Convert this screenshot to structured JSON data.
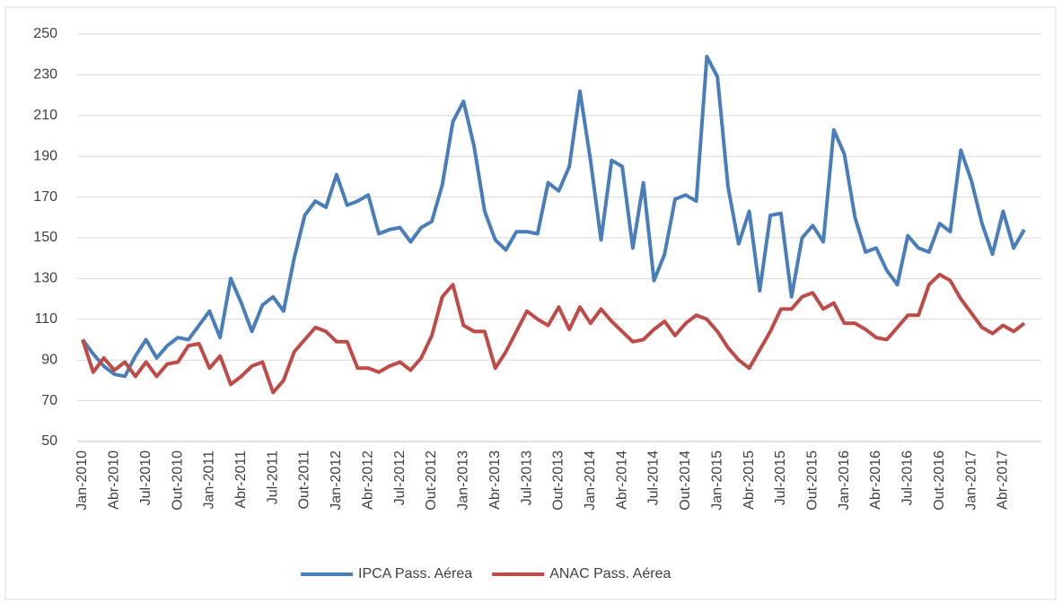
{
  "chart_data": {
    "type": "line",
    "categories": [
      "Jan-2010",
      null,
      null,
      "Abr-2010",
      null,
      null,
      "Jul-2010",
      null,
      null,
      "Out-2010",
      null,
      null,
      "Jan-2011",
      null,
      null,
      "Abr-2011",
      null,
      null,
      "Jul-2011",
      null,
      null,
      "Out-2011",
      null,
      null,
      "Jan-2012",
      null,
      null,
      "Abr-2012",
      null,
      null,
      "Jul-2012",
      null,
      null,
      "Out-2012",
      null,
      null,
      "Jan-2013",
      null,
      null,
      "Abr-2013",
      null,
      null,
      "Jul-2013",
      null,
      null,
      "Out-2013",
      null,
      null,
      "Jan-2014",
      null,
      null,
      "Abr-2014",
      null,
      null,
      "Jul-2014",
      null,
      null,
      "Out-2014",
      null,
      null,
      "Jan-2015",
      null,
      null,
      "Abr-2015",
      null,
      null,
      "Jul-2015",
      null,
      null,
      "Out-2015",
      null,
      null,
      "Jan-2016",
      null,
      null,
      "Abr-2016",
      null,
      null,
      "Jul-2016",
      null,
      null,
      "Out-2016",
      null,
      null,
      "Jan-2017",
      null,
      null,
      "Abr-2017",
      null,
      null
    ],
    "series": [
      {
        "name": "IPCA Pass. Aérea",
        "color": "#4a7ebb",
        "values": [
          100,
          93,
          87,
          83,
          82,
          92,
          100,
          91,
          97,
          101,
          100,
          107,
          114,
          101,
          130,
          118,
          104,
          117,
          121,
          114,
          140,
          161,
          168,
          165,
          181,
          166,
          168,
          171,
          152,
          154,
          155,
          148,
          155,
          158,
          176,
          207,
          217,
          195,
          163,
          149,
          144,
          153,
          153,
          152,
          177,
          173,
          185,
          222,
          188,
          149,
          188,
          185,
          145,
          177,
          129,
          142,
          169,
          171,
          168,
          239,
          229,
          175,
          147,
          163,
          124,
          161,
          162,
          121,
          150,
          156,
          148,
          203,
          191,
          160,
          143,
          145,
          134,
          127,
          151,
          145,
          143,
          157,
          153,
          193,
          178,
          157,
          142,
          163,
          145,
          154
        ]
      },
      {
        "name": "ANAC Pass. Aérea",
        "color": "#be4b48",
        "values": [
          100,
          84,
          91,
          85,
          89,
          82,
          89,
          82,
          88,
          89,
          97,
          98,
          86,
          92,
          78,
          82,
          87,
          89,
          74,
          80,
          94,
          100,
          106,
          104,
          99,
          99,
          86,
          86,
          84,
          87,
          89,
          85,
          91,
          102,
          121,
          127,
          107,
          104,
          104,
          86,
          94,
          104,
          114,
          110,
          107,
          116,
          105,
          116,
          108,
          115,
          109,
          104,
          99,
          100,
          105,
          109,
          102,
          108,
          112,
          110,
          104,
          96,
          90,
          86,
          95,
          104,
          115,
          115,
          121,
          123,
          115,
          118,
          108,
          108,
          105,
          101,
          100,
          106,
          112,
          112,
          127,
          132,
          129,
          120,
          113,
          106,
          103,
          107,
          104,
          108
        ]
      }
    ],
    "ylim": [
      50,
      250
    ],
    "yticks": [
      50,
      70,
      90,
      110,
      130,
      150,
      170,
      190,
      210,
      230,
      250
    ],
    "grid": true,
    "legend": "bottom"
  }
}
